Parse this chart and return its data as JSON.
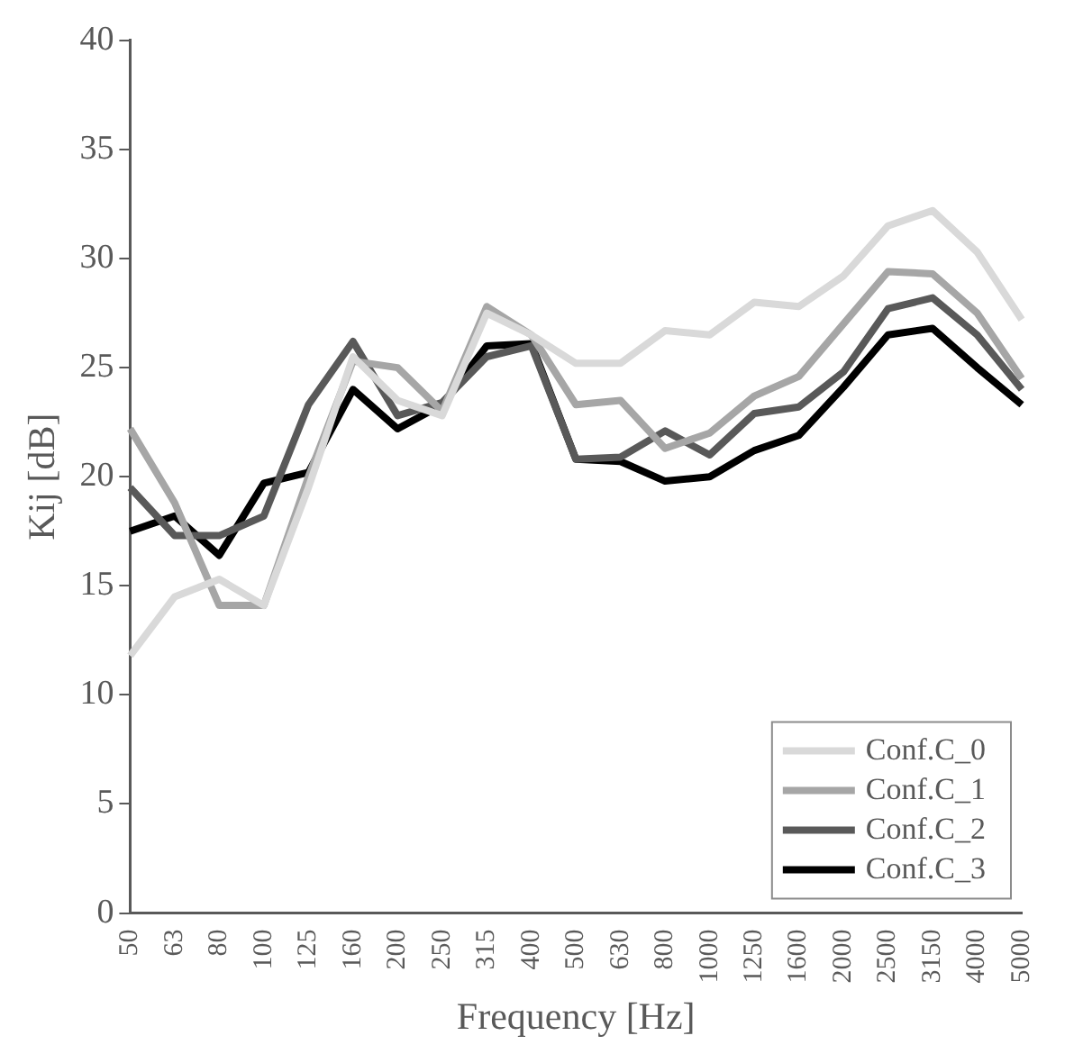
{
  "chart_data": {
    "type": "line",
    "xlabel": "Frequency [Hz]",
    "ylabel": "Kij [dB]",
    "categories": [
      "50",
      "63",
      "80",
      "100",
      "125",
      "160",
      "200",
      "250",
      "315",
      "400",
      "500",
      "630",
      "800",
      "1000",
      "1250",
      "1600",
      "2000",
      "2500",
      "3150",
      "4000",
      "5000"
    ],
    "series": [
      {
        "name": "Conf.C_0",
        "color": "#d9d9d9",
        "values": [
          11.8,
          14.5,
          15.3,
          14.1,
          19.5,
          25.5,
          23.5,
          22.8,
          27.5,
          26.5,
          25.2,
          25.2,
          26.7,
          26.5,
          28,
          27.8,
          29.2,
          31.5,
          32.2,
          30.3,
          27.2
        ]
      },
      {
        "name": "Conf.C_1",
        "color": "#a6a6a6",
        "values": [
          22.2,
          18.8,
          14.1,
          14.1,
          20,
          25.3,
          25,
          23,
          27.8,
          26.5,
          23.3,
          23.5,
          21.3,
          22,
          23.7,
          24.6,
          27,
          29.4,
          29.3,
          27.5,
          24.5
        ]
      },
      {
        "name": "Conf.C_2",
        "color": "#595959",
        "values": [
          19.5,
          17.3,
          17.3,
          18.2,
          23.3,
          26.2,
          22.8,
          23.4,
          25.5,
          26,
          20.8,
          20.9,
          22.1,
          21,
          22.9,
          23.2,
          24.8,
          27.7,
          28.2,
          26.5,
          24
        ]
      },
      {
        "name": "Conf.C_3",
        "color": "#000000",
        "values": [
          17.5,
          18.2,
          16.4,
          19.7,
          20.2,
          24,
          22.2,
          23.3,
          26,
          26.1,
          20.8,
          20.7,
          19.8,
          20,
          21.2,
          21.9,
          24.1,
          26.5,
          26.8,
          25,
          23.3
        ]
      }
    ],
    "ylim": [
      0,
      40
    ],
    "yticks": [
      0,
      5,
      10,
      15,
      20,
      25,
      30,
      35,
      40
    ],
    "grid": false,
    "legend": "bottom right",
    "marker": "none",
    "line_style": "solid"
  }
}
